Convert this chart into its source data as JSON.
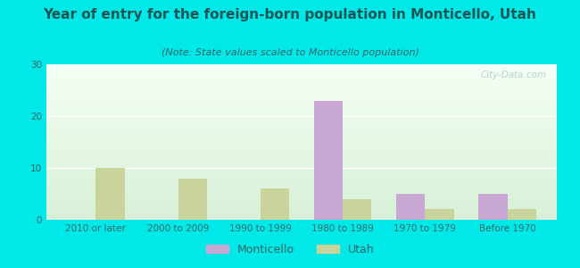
{
  "title": "Year of entry for the foreign-born population in Monticello, Utah",
  "subtitle": "(Note: State values scaled to Monticello population)",
  "categories": [
    "2010 or later",
    "2000 to 2009",
    "1990 to 1999",
    "1980 to 1989",
    "1970 to 1979",
    "Before 1970"
  ],
  "monticello_values": [
    0,
    0,
    0,
    23,
    5,
    5
  ],
  "utah_values": [
    10,
    8,
    6,
    4,
    2,
    2
  ],
  "monticello_color": "#c9a8d4",
  "utah_color": "#c8d49a",
  "background_color": "#00e8e8",
  "ylim": [
    0,
    30
  ],
  "yticks": [
    0,
    10,
    20,
    30
  ],
  "bar_width": 0.35,
  "title_fontsize": 11,
  "subtitle_fontsize": 8,
  "tick_fontsize": 7.5,
  "legend_fontsize": 9,
  "watermark": "City-Data.com"
}
